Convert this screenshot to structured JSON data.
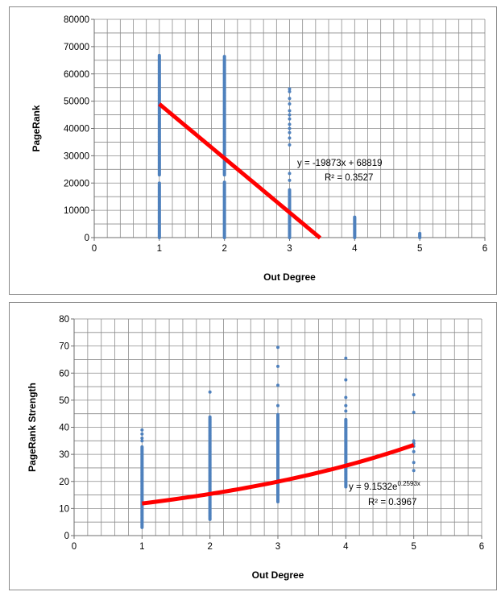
{
  "chart_data": [
    {
      "type": "scatter",
      "xlabel": "Out Degree",
      "ylabel": "PageRank",
      "xlim": [
        0,
        6
      ],
      "ylim": [
        0,
        80000
      ],
      "xticks": [
        0,
        1,
        2,
        3,
        4,
        5,
        6
      ],
      "yticks": [
        0,
        10000,
        20000,
        30000,
        40000,
        50000,
        60000,
        70000,
        80000
      ],
      "grid": true,
      "marker_color": "#4f81bd",
      "trend_color": "#ff0000",
      "trendline": {
        "kind": "linear",
        "slope": -19873,
        "intercept": 68819,
        "x_from": 1,
        "x_to": 3.47
      },
      "annotation": {
        "equation": "y = -19873x + 68819",
        "r_squared": "R² = 0.3527"
      },
      "series": [
        {
          "ranges": [
            {
              "x": 1,
              "from": 0,
              "to": 20000,
              "step": 350
            },
            {
              "x": 1,
              "from": 23000,
              "to": 67000,
              "step": 350
            },
            {
              "x": 2,
              "from": 0,
              "to": 20500,
              "step": 350
            },
            {
              "x": 2,
              "from": 23000,
              "to": 66500,
              "step": 350
            },
            {
              "x": 3,
              "from": 0,
              "to": 17500,
              "step": 350
            },
            {
              "x": 4,
              "from": 0,
              "to": 7500,
              "step": 300
            },
            {
              "x": 5,
              "from": 0,
              "to": 1600,
              "step": 300
            }
          ],
          "points": [
            [
              3,
              21000
            ],
            [
              3,
              23500
            ],
            [
              3,
              34000
            ],
            [
              3,
              36500
            ],
            [
              3,
              38500
            ],
            [
              3,
              40000
            ],
            [
              3,
              41500
            ],
            [
              3,
              43500
            ],
            [
              3,
              45000
            ],
            [
              3,
              46500
            ],
            [
              3,
              49000
            ],
            [
              3,
              51000
            ],
            [
              3,
              53500
            ],
            [
              3,
              54500
            ]
          ]
        }
      ]
    },
    {
      "type": "scatter",
      "xlabel": "Out Degree",
      "ylabel": "PageRank Strength",
      "xlim": [
        0,
        6
      ],
      "ylim": [
        0,
        80
      ],
      "xticks": [
        0,
        1,
        2,
        3,
        4,
        5,
        6
      ],
      "yticks": [
        0,
        10,
        20,
        30,
        40,
        50,
        60,
        70,
        80
      ],
      "grid": true,
      "marker_color": "#4f81bd",
      "trend_color": "#ff0000",
      "trendline": {
        "kind": "exponential",
        "a": 9.1532,
        "b": 0.2593,
        "x_from": 1,
        "x_to": 5
      },
      "annotation": {
        "equation": "y = 9.1532e",
        "exponent": "0.2593x",
        "r_squared": "R² = 0.3967"
      },
      "series": [
        {
          "ranges": [
            {
              "x": 1,
              "from": 3,
              "to": 33,
              "step": 0.35
            },
            {
              "x": 2,
              "from": 6,
              "to": 44,
              "step": 0.35
            },
            {
              "x": 3,
              "from": 12.5,
              "to": 45,
              "step": 0.35
            },
            {
              "x": 4,
              "from": 18,
              "to": 43,
              "step": 0.35
            }
          ],
          "points": [
            [
              1,
              35
            ],
            [
              1,
              36
            ],
            [
              1,
              37.5
            ],
            [
              1,
              39
            ],
            [
              2,
              53
            ],
            [
              3,
              48
            ],
            [
              3,
              55.5
            ],
            [
              3,
              62.5
            ],
            [
              3,
              69.5
            ],
            [
              4,
              46
            ],
            [
              4,
              48
            ],
            [
              4,
              51
            ],
            [
              4,
              57.5
            ],
            [
              4,
              65.5
            ],
            [
              5,
              24
            ],
            [
              5,
              27
            ],
            [
              5,
              31
            ],
            [
              5,
              33
            ],
            [
              5,
              34
            ],
            [
              5,
              35
            ],
            [
              5,
              45.5
            ],
            [
              5,
              52
            ]
          ]
        }
      ]
    }
  ]
}
